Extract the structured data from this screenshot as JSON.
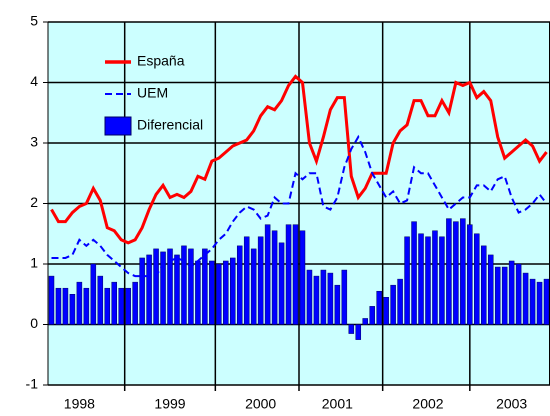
{
  "chart_data": {
    "type": "bar-line",
    "categories": [
      null,
      null,
      null,
      null,
      "1998",
      null,
      null,
      null,
      null,
      null,
      null,
      null,
      null,
      null,
      null,
      null,
      null,
      "1999",
      null,
      null,
      null,
      null,
      null,
      null,
      null,
      null,
      null,
      null,
      null,
      null,
      "2000",
      null,
      null,
      null,
      null,
      null,
      null,
      null,
      null,
      null,
      null,
      "2001",
      null,
      null,
      null,
      null,
      null,
      null,
      null,
      null,
      null,
      null,
      null,
      null,
      "2002",
      null,
      null,
      null,
      null,
      null,
      null,
      null,
      null,
      null,
      null,
      null,
      "2003",
      null,
      null,
      null,
      null,
      null
    ],
    "series": [
      {
        "name": "España",
        "type": "line",
        "color": "#ff0000",
        "dash": false,
        "values": [
          1.9,
          1.7,
          1.7,
          1.85,
          1.95,
          2.0,
          2.25,
          2.05,
          1.6,
          1.55,
          1.4,
          1.35,
          1.4,
          1.6,
          1.9,
          2.15,
          2.3,
          2.1,
          2.15,
          2.1,
          2.2,
          2.45,
          2.4,
          2.7,
          2.75,
          2.85,
          2.95,
          3.0,
          3.05,
          3.2,
          3.45,
          3.6,
          3.55,
          3.7,
          3.95,
          4.1,
          4.0,
          3.0,
          2.7,
          3.1,
          3.55,
          3.75,
          3.75,
          2.45,
          2.1,
          2.25,
          2.5,
          2.5,
          2.5,
          3.0,
          3.2,
          3.3,
          3.7,
          3.7,
          3.45,
          3.45,
          3.7,
          3.5,
          4.0,
          3.95,
          4.0,
          3.75,
          3.85,
          3.7,
          3.1,
          2.75,
          2.85,
          2.95,
          3.05,
          2.95,
          2.7,
          2.85
        ]
      },
      {
        "name": "UEM",
        "type": "line",
        "color": "#0000ff",
        "dash": true,
        "values": [
          1.1,
          1.1,
          1.1,
          1.15,
          1.4,
          1.3,
          1.4,
          1.3,
          1.15,
          1.05,
          0.95,
          0.85,
          0.8,
          0.8,
          0.8,
          0.8,
          1.0,
          1.05,
          1.1,
          1.05,
          0.95,
          1.05,
          1.15,
          1.25,
          1.4,
          1.5,
          1.7,
          1.85,
          1.95,
          1.9,
          1.75,
          1.8,
          2.1,
          2.0,
          2.0,
          2.5,
          2.4,
          2.5,
          2.5,
          1.95,
          1.9,
          2.1,
          2.6,
          2.9,
          3.1,
          2.85,
          2.5,
          2.3,
          2.1,
          2.2,
          2.0,
          2.05,
          2.6,
          2.5,
          2.5,
          2.3,
          2.1,
          1.9,
          2.0,
          2.1,
          2.1,
          2.3,
          2.3,
          2.2,
          2.4,
          2.45,
          2.1,
          1.85,
          1.9,
          2.0,
          2.15,
          2.0
        ]
      },
      {
        "name": "Diferencial",
        "type": "bar",
        "color": "#0000ff",
        "values": [
          0.8,
          0.6,
          0.6,
          0.5,
          0.7,
          0.6,
          1.0,
          0.8,
          0.6,
          0.7,
          0.6,
          0.6,
          0.7,
          1.1,
          1.15,
          1.25,
          1.2,
          1.25,
          1.15,
          1.3,
          1.25,
          1.05,
          1.25,
          1.05,
          1.0,
          1.05,
          1.1,
          1.3,
          1.45,
          1.25,
          1.45,
          1.65,
          1.55,
          1.35,
          1.65,
          1.65,
          1.55,
          0.9,
          0.8,
          0.9,
          0.85,
          0.65,
          0.9,
          -0.15,
          -0.25,
          0.1,
          0.3,
          0.55,
          0.45,
          0.65,
          0.75,
          1.45,
          1.7,
          1.5,
          1.45,
          1.55,
          1.45,
          1.75,
          1.7,
          1.75,
          1.65,
          1.5,
          1.3,
          1.15,
          0.95,
          0.95,
          1.05,
          1.0,
          0.85,
          0.75,
          0.7,
          0.75
        ]
      }
    ],
    "ylim": [
      -1,
      5
    ],
    "yticks": [
      -1,
      0,
      1,
      2,
      3,
      4,
      5
    ],
    "grid": true,
    "legend": "upper left",
    "background": "#ccffff"
  }
}
